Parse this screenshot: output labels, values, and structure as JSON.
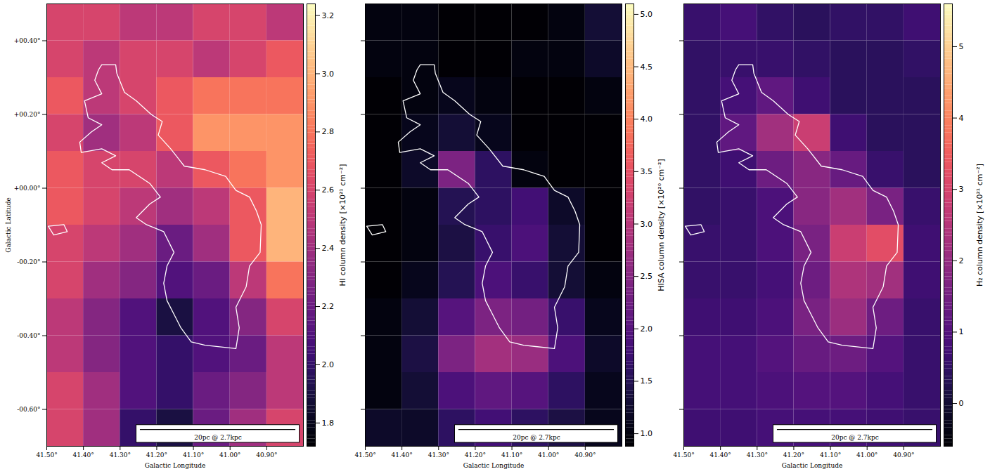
{
  "chart_data": {
    "type": "heatmap",
    "xlabel": "Galactic Longitude",
    "ylabel": "Galactic Latitude",
    "xlim": [
      41.5,
      40.8
    ],
    "xticks": [
      {
        "value": 41.5,
        "label": "41.50°"
      },
      {
        "value": 41.4,
        "label": "41.40°"
      },
      {
        "value": 41.3,
        "label": "41.30°"
      },
      {
        "value": 41.2,
        "label": "41.20°"
      },
      {
        "value": 41.1,
        "label": "41.10°"
      },
      {
        "value": 41.0,
        "label": "41.00°"
      },
      {
        "value": 40.9,
        "label": "40.90°"
      }
    ],
    "ylim": [
      -0.7,
      0.5
    ],
    "yticks": [
      {
        "value": 0.4,
        "label": "+00.40°"
      },
      {
        "value": 0.2,
        "label": "+00.20°"
      },
      {
        "value": 0,
        "label": "+00.00°"
      },
      {
        "value": -0.2,
        "label": "-00.20°"
      },
      {
        "value": -0.4,
        "label": "-00.40°"
      },
      {
        "value": -0.6,
        "label": "-00.60°"
      }
    ],
    "xbins": [
      41.5,
      41.4,
      41.3,
      41.2,
      41.1,
      41.0,
      40.9,
      40.8
    ],
    "ybins": [
      0.5,
      0.4,
      0.3,
      0.2,
      0.1,
      0.0,
      -0.1,
      -0.2,
      -0.3,
      -0.4,
      -0.5,
      -0.6,
      -0.7
    ],
    "scalebar": {
      "label": "20pc @ 2.7kpc",
      "length": 0.424
    },
    "contours": [
      [
        [
          41.35,
          0.335
        ],
        [
          41.312,
          0.335
        ],
        [
          41.309,
          0.312
        ],
        [
          41.288,
          0.26
        ],
        [
          41.256,
          0.237
        ],
        [
          41.215,
          0.2
        ],
        [
          41.185,
          0.181
        ],
        [
          41.196,
          0.144
        ],
        [
          41.162,
          0.107
        ],
        [
          41.125,
          0.06
        ],
        [
          41.068,
          0.05
        ],
        [
          41.012,
          0.032
        ],
        [
          40.984,
          -0.006
        ],
        [
          40.947,
          -0.024
        ],
        [
          40.928,
          -0.062
        ],
        [
          40.915,
          -0.099
        ],
        [
          40.918,
          -0.174
        ],
        [
          40.947,
          -0.211
        ],
        [
          40.956,
          -0.267
        ],
        [
          40.984,
          -0.323
        ],
        [
          40.975,
          -0.379
        ],
        [
          40.984,
          -0.435
        ],
        [
          41.068,
          -0.426
        ],
        [
          41.106,
          -0.417
        ],
        [
          41.134,
          -0.379
        ],
        [
          41.153,
          -0.342
        ],
        [
          41.172,
          -0.305
        ],
        [
          41.181,
          -0.258
        ],
        [
          41.172,
          -0.211
        ],
        [
          41.153,
          -0.174
        ],
        [
          41.181,
          -0.118
        ],
        [
          41.228,
          -0.099
        ],
        [
          41.256,
          -0.08
        ],
        [
          41.219,
          -0.043
        ],
        [
          41.19,
          -0.024
        ],
        [
          41.219,
          0.013
        ],
        [
          41.275,
          0.05
        ],
        [
          41.322,
          0.05
        ],
        [
          41.35,
          0.069
        ],
        [
          41.312,
          0.088
        ],
        [
          41.35,
          0.107
        ],
        [
          41.406,
          0.097
        ],
        [
          41.41,
          0.125
        ],
        [
          41.378,
          0.153
        ],
        [
          41.35,
          0.172
        ],
        [
          41.387,
          0.191
        ],
        [
          41.397,
          0.237
        ],
        [
          41.35,
          0.256
        ],
        [
          41.369,
          0.293
        ],
        [
          41.359,
          0.321
        ]
      ],
      [
        [
          41.496,
          -0.103
        ],
        [
          41.453,
          -0.099
        ],
        [
          41.444,
          -0.118
        ],
        [
          41.481,
          -0.127
        ]
      ]
    ],
    "panels": [
      {
        "tick_labels": true,
        "colorbar": {
          "label": "HI column density [×10²¹ cm⁻²]",
          "range": [
            1.72,
            3.24
          ],
          "ticks": [
            1.8,
            {
              "value": 2.0,
              "label": "2.0"
            },
            2.2,
            2.4,
            2.6,
            2.8,
            {
              "value": 3.0,
              "label": "3.0"
            },
            3.2
          ]
        },
        "cells": [
          [
            2.6,
            2.6,
            2.5,
            2.5,
            2.6,
            2.6,
            2.5
          ],
          [
            2.6,
            2.5,
            2.6,
            2.6,
            2.5,
            2.6,
            2.7
          ],
          [
            2.7,
            2.5,
            2.6,
            2.7,
            2.8,
            2.8,
            2.8
          ],
          [
            2.6,
            2.4,
            2.5,
            2.7,
            2.9,
            2.9,
            2.9
          ],
          [
            2.7,
            2.6,
            2.6,
            2.5,
            2.7,
            2.8,
            2.9
          ],
          [
            2.7,
            2.6,
            2.5,
            2.4,
            2.5,
            2.7,
            3.0
          ],
          [
            2.6,
            2.5,
            2.4,
            2.2,
            2.4,
            2.7,
            3.0
          ],
          [
            2.6,
            2.4,
            2.3,
            2.1,
            2.2,
            2.5,
            2.8
          ],
          [
            2.5,
            2.3,
            2.1,
            1.9,
            2.1,
            2.3,
            2.6
          ],
          [
            2.5,
            2.3,
            2.1,
            2.0,
            2.1,
            2.2,
            2.5
          ],
          [
            2.6,
            2.4,
            2.1,
            2.0,
            2.2,
            2.3,
            2.5
          ],
          [
            2.6,
            2.4,
            2.0,
            1.9,
            2.2,
            2.4,
            2.6
          ]
        ]
      },
      {
        "tick_labels": "x",
        "colorbar": {
          "label": "HISA column density [×10²⁰ cm⁻²]",
          "range": [
            0.88,
            5.1
          ],
          "ticks": [
            {
              "value": 1.0,
              "label": "1.0"
            },
            1.5,
            {
              "value": 2.0,
              "label": "2.0"
            },
            2.5,
            {
              "value": 3.0,
              "label": "3.0"
            },
            3.5,
            {
              "value": 4.0,
              "label": "4.0"
            },
            4.5,
            {
              "value": 5.0,
              "label": "5.0"
            }
          ]
        },
        "cells": [
          [
            1.0,
            1.0,
            0.9,
            0.9,
            0.9,
            1.0,
            1.3
          ],
          [
            1.0,
            1.0,
            0.9,
            0.9,
            1.0,
            1.0,
            1.2
          ],
          [
            0.9,
            1.0,
            1.1,
            1.0,
            0.9,
            0.9,
            1.0
          ],
          [
            0.9,
            1.1,
            1.3,
            1.1,
            0.9,
            0.9,
            0.9
          ],
          [
            0.9,
            1.2,
            2.4,
            1.6,
            1.0,
            0.9,
            0.9
          ],
          [
            0.9,
            1.0,
            1.5,
            1.6,
            1.8,
            1.2,
            0.9
          ],
          [
            0.9,
            1.0,
            1.4,
            1.7,
            1.9,
            1.3,
            0.9
          ],
          [
            0.9,
            1.1,
            1.5,
            1.9,
            1.7,
            1.3,
            1.0
          ],
          [
            1.0,
            1.3,
            2.0,
            2.4,
            2.3,
            1.7,
            1.1
          ],
          [
            1.0,
            1.4,
            2.4,
            2.8,
            2.7,
            1.9,
            1.2
          ],
          [
            1.0,
            1.3,
            1.9,
            2.1,
            2.0,
            1.6,
            1.1
          ],
          [
            1.2,
            1.2,
            1.6,
            1.8,
            1.6,
            1.4,
            1.1
          ]
        ]
      },
      {
        "tick_labels": "x",
        "colorbar": {
          "label": "H₂ column density [×10²¹ cm⁻²]",
          "range": [
            -0.6,
            5.6
          ],
          "ticks": [
            0,
            1,
            2,
            3,
            4,
            5
          ]
        },
        "cells": [
          [
            0.6,
            0.8,
            0.5,
            0.4,
            0.5,
            0.5,
            0.7
          ],
          [
            0.5,
            0.6,
            0.6,
            0.5,
            0.4,
            0.4,
            0.5
          ],
          [
            0.5,
            0.8,
            1.2,
            0.7,
            0.4,
            0.4,
            0.4
          ],
          [
            0.5,
            1.2,
            2.2,
            2.8,
            0.7,
            0.4,
            0.4
          ],
          [
            0.5,
            0.7,
            1.4,
            1.8,
            1.3,
            0.6,
            0.4
          ],
          [
            0.5,
            0.6,
            0.9,
            1.8,
            2.2,
            1.6,
            0.6
          ],
          [
            0.6,
            0.6,
            0.9,
            1.6,
            2.8,
            3.2,
            0.7
          ],
          [
            0.6,
            0.6,
            0.8,
            1.4,
            2.4,
            2.2,
            0.7
          ],
          [
            0.7,
            0.7,
            0.9,
            1.6,
            2.1,
            1.4,
            0.6
          ],
          [
            0.8,
            0.8,
            1.0,
            1.3,
            1.4,
            1.0,
            0.6
          ],
          [
            0.8,
            0.8,
            0.9,
            1.0,
            1.0,
            0.8,
            0.6
          ],
          [
            0.7,
            0.7,
            0.8,
            0.8,
            0.8,
            0.7,
            0.6
          ]
        ]
      }
    ]
  }
}
